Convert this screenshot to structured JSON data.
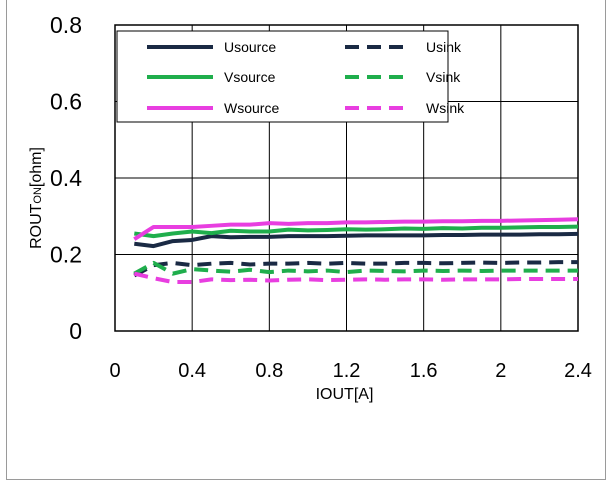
{
  "chart_data": {
    "type": "line",
    "title": "",
    "xlabel": "IOUT[A]",
    "ylabel": {
      "main": "ROUT",
      "sub": "ON",
      "unit": "[ohm]"
    },
    "xlim": [
      0,
      2.4
    ],
    "ylim": [
      0,
      0.8
    ],
    "x_ticks": [
      "0",
      "0.4",
      "0.8",
      "1.2",
      "1.6",
      "2",
      "2.4"
    ],
    "y_ticks": [
      "0",
      "0.2",
      "0.4",
      "0.6",
      "0.8"
    ],
    "grid": true,
    "legend_position": "top",
    "x": [
      0.1,
      0.2,
      0.3,
      0.4,
      0.5,
      0.6,
      0.7,
      0.8,
      0.9,
      1.0,
      1.1,
      1.2,
      1.3,
      1.4,
      1.5,
      1.6,
      1.7,
      1.8,
      1.9,
      2.0,
      2.1,
      2.2,
      2.3,
      2.4
    ],
    "series": [
      {
        "name": "Usource",
        "color": "#1a2a44",
        "dash": "solid",
        "values": [
          0.228,
          0.222,
          0.235,
          0.238,
          0.248,
          0.245,
          0.246,
          0.246,
          0.248,
          0.248,
          0.248,
          0.249,
          0.25,
          0.25,
          0.25,
          0.25,
          0.251,
          0.251,
          0.252,
          0.252,
          0.252,
          0.253,
          0.253,
          0.254
        ]
      },
      {
        "name": "Usink",
        "color": "#1a2a44",
        "dash": "dashed",
        "values": [
          0.145,
          0.172,
          0.178,
          0.172,
          0.176,
          0.178,
          0.174,
          0.176,
          0.176,
          0.178,
          0.176,
          0.178,
          0.176,
          0.176,
          0.178,
          0.178,
          0.177,
          0.178,
          0.179,
          0.178,
          0.179,
          0.179,
          0.18,
          0.18
        ]
      },
      {
        "name": "Vsource",
        "color": "#1fae4c",
        "dash": "solid",
        "values": [
          0.255,
          0.248,
          0.255,
          0.26,
          0.256,
          0.262,
          0.26,
          0.26,
          0.265,
          0.263,
          0.264,
          0.266,
          0.265,
          0.266,
          0.268,
          0.267,
          0.269,
          0.268,
          0.27,
          0.27,
          0.271,
          0.272,
          0.272,
          0.273
        ]
      },
      {
        "name": "Vsink",
        "color": "#1fae4c",
        "dash": "dashed",
        "values": [
          0.15,
          0.178,
          0.15,
          0.162,
          0.158,
          0.155,
          0.16,
          0.154,
          0.158,
          0.156,
          0.158,
          0.154,
          0.158,
          0.157,
          0.156,
          0.158,
          0.157,
          0.158,
          0.157,
          0.158,
          0.158,
          0.158,
          0.158,
          0.158
        ]
      },
      {
        "name": "Wsource",
        "color": "#e83ee0",
        "dash": "solid",
        "values": [
          0.24,
          0.272,
          0.272,
          0.272,
          0.275,
          0.278,
          0.278,
          0.282,
          0.28,
          0.282,
          0.282,
          0.284,
          0.284,
          0.285,
          0.286,
          0.286,
          0.287,
          0.287,
          0.288,
          0.288,
          0.289,
          0.29,
          0.291,
          0.292
        ]
      },
      {
        "name": "Wsink",
        "color": "#e83ee0",
        "dash": "dashed",
        "values": [
          0.15,
          0.138,
          0.128,
          0.128,
          0.135,
          0.133,
          0.134,
          0.132,
          0.134,
          0.135,
          0.133,
          0.134,
          0.135,
          0.134,
          0.135,
          0.135,
          0.134,
          0.135,
          0.135,
          0.135,
          0.136,
          0.136,
          0.136,
          0.136
        ]
      }
    ],
    "legend_order": [
      "Usource",
      "Usink",
      "Vsource",
      "Vsink",
      "Wsource",
      "Wsink"
    ]
  }
}
